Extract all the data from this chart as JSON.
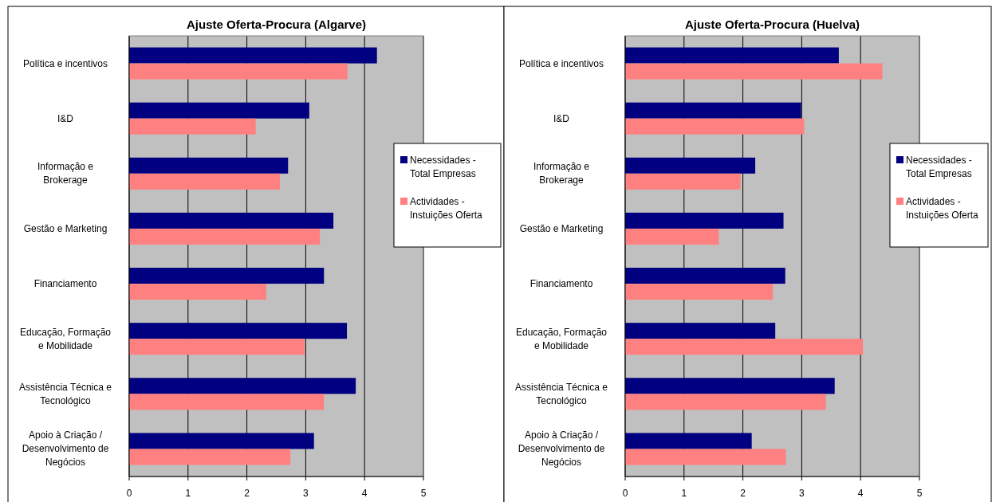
{
  "chart_data": [
    {
      "type": "bar",
      "orientation": "horizontal",
      "title": "Ajuste Oferta-Procura (Algarve)",
      "categories": [
        "Política e incentivos",
        "I&D",
        "Informação e Brokerage",
        "Gestão e Marketing",
        "Financiamento",
        "Educação, Formação e Mobilidade",
        "Assistência Técnica e Tecnológico",
        "Apoio à Criação / Desenvolvimento de Negócios"
      ],
      "series": [
        {
          "name": "Necessidades - Total Empresas",
          "color": "#000080",
          "values": [
            4.21,
            3.06,
            2.7,
            3.47,
            3.31,
            3.7,
            3.85,
            3.14
          ]
        },
        {
          "name": "Actividades - Instuições Oferta",
          "color": "#ff8080",
          "values": [
            3.71,
            2.15,
            2.56,
            3.24,
            2.33,
            2.98,
            3.31,
            2.74
          ]
        }
      ],
      "xlim": [
        0,
        5
      ],
      "xticks": [
        0,
        1,
        2,
        3,
        4,
        5
      ],
      "grid": "x",
      "legend": "right"
    },
    {
      "type": "bar",
      "orientation": "horizontal",
      "title": "Ajuste Oferta-Procura (Huelva)",
      "categories": [
        "Política e incentivos",
        "I&D",
        "Informação e Brokerage",
        "Gestão e Marketing",
        "Financiamento",
        "Educação, Formação e Mobilidade",
        "Assistência Técnica e Tecnológico",
        "Apoio à Criação / Desenvolvimento de Negócios"
      ],
      "series": [
        {
          "name": "Necessidades - Total Empresas",
          "color": "#000080",
          "values": [
            3.63,
            2.99,
            2.21,
            2.69,
            2.72,
            2.55,
            3.56,
            2.15
          ]
        },
        {
          "name": "Actividades - Instuições Oferta",
          "color": "#ff8080",
          "values": [
            4.37,
            3.04,
            1.96,
            1.59,
            2.51,
            4.04,
            3.41,
            2.73
          ]
        }
      ],
      "xlim": [
        0,
        5
      ],
      "xticks": [
        0,
        1,
        2,
        3,
        4,
        5
      ],
      "grid": "x",
      "legend": "right"
    }
  ]
}
